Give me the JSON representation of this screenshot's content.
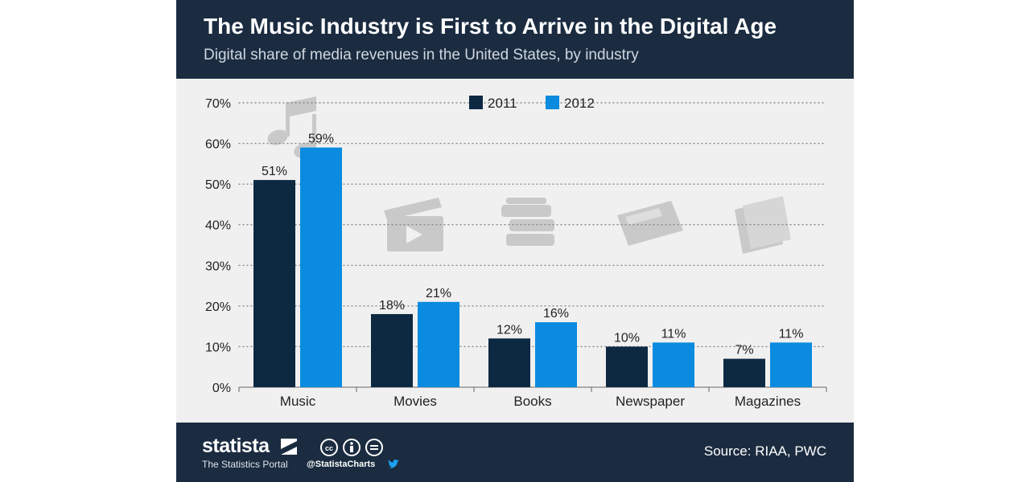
{
  "header": {
    "title": "The Music Industry is First to Arrive in the Digital Age",
    "subtitle": "Digital share of media revenues in the United States, by industry"
  },
  "chart_data": {
    "type": "bar",
    "categories": [
      "Music",
      "Movies",
      "Books",
      "Newspaper",
      "Magazines"
    ],
    "series": [
      {
        "name": "2011",
        "values": [
          51,
          18,
          12,
          10,
          7
        ],
        "labels": [
          "51%",
          "18%",
          "12%",
          "10%",
          "7%"
        ]
      },
      {
        "name": "2012",
        "values": [
          59,
          21,
          16,
          11,
          11
        ],
        "labels": [
          "59%",
          "21%",
          "16%",
          "11%",
          "11%"
        ]
      }
    ],
    "yticks": [
      "0%",
      "10%",
      "20%",
      "30%",
      "40%",
      "50%",
      "60%",
      "70%"
    ],
    "ylim": [
      0,
      70
    ],
    "xlabel": "",
    "ylabel": "",
    "grid": true,
    "legend": "top-center",
    "colors": [
      "#0d2942",
      "#0a8be0"
    ],
    "decorative_icons": [
      "music-note-icon",
      "clapperboard-icon",
      "books-icon",
      "newspaper-icon",
      "magazines-icon"
    ]
  },
  "footer": {
    "brand": "statista",
    "tagline": "The Statistics Portal",
    "handle": "@StatistaCharts",
    "source": "Source: RIAA, PWC"
  },
  "colors": {
    "header_bg": "#1b2c41",
    "plot_bg": "#f0f0f0",
    "icon_gray": "#c9c9c9"
  }
}
